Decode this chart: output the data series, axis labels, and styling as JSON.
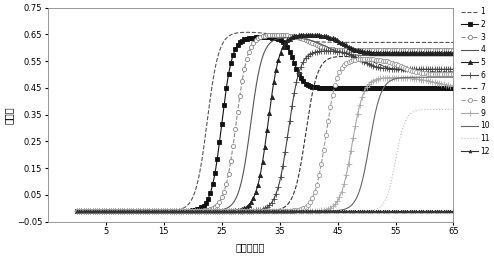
{
  "xlabel": "时间（分）",
  "ylabel": "浓度值",
  "xlim": [
    -5,
    65
  ],
  "ylim": [
    -0.05,
    0.75
  ],
  "xticks": [
    5,
    15,
    25,
    35,
    45,
    55,
    65
  ],
  "yticks": [
    -0.05,
    0.05,
    0.15,
    0.25,
    0.35,
    0.45,
    0.55,
    0.65,
    0.75
  ],
  "series": [
    {
      "label": "1",
      "rise_mid": 22.5,
      "rise_k": 1.0,
      "ymax": 0.67,
      "fall_mid": 36.0,
      "fall_k": 0.5,
      "yend": 0.63,
      "linestyle": "--",
      "color": "#555555",
      "marker": null,
      "markersize": 3,
      "markevery": 3
    },
    {
      "label": "2",
      "rise_mid": 25.0,
      "rise_k": 1.1,
      "ymax": 0.65,
      "fall_mid": 37.5,
      "fall_k": 1.2,
      "yend": 0.46,
      "linestyle": "-",
      "color": "#111111",
      "marker": "s",
      "markersize": 3,
      "markevery": 3
    },
    {
      "label": "3",
      "rise_mid": 27.5,
      "rise_k": 1.0,
      "ymax": 0.66,
      "fall_mid": 40.5,
      "fall_k": 0.7,
      "yend": 0.6,
      "linestyle": "--",
      "color": "#888888",
      "marker": "o",
      "markersize": 3,
      "markevery": 3
    },
    {
      "label": "4",
      "rise_mid": 30.0,
      "rise_k": 1.0,
      "ymax": 0.65,
      "fall_mid": 43.0,
      "fall_k": 0.6,
      "yend": 0.58,
      "linestyle": "-",
      "color": "#555555",
      "marker": null,
      "markersize": 3,
      "markevery": 3
    },
    {
      "label": "5",
      "rise_mid": 33.0,
      "rise_k": 1.0,
      "ymax": 0.66,
      "fall_mid": 46.0,
      "fall_k": 0.7,
      "yend": 0.59,
      "linestyle": "-",
      "color": "#222222",
      "marker": "^",
      "markersize": 3,
      "markevery": 3
    },
    {
      "label": "6",
      "rise_mid": 36.5,
      "rise_k": 1.0,
      "ymax": 0.6,
      "fall_mid": 49.0,
      "fall_k": 0.7,
      "yend": 0.53,
      "linestyle": "-",
      "color": "#444444",
      "marker": "+",
      "markersize": 4,
      "markevery": 3
    },
    {
      "label": "7",
      "rise_mid": 39.5,
      "rise_k": 1.0,
      "ymax": 0.58,
      "fall_mid": 52.0,
      "fall_k": 0.6,
      "yend": 0.52,
      "linestyle": "--",
      "color": "#333333",
      "marker": null,
      "markersize": 3,
      "markevery": 3
    },
    {
      "label": "8",
      "rise_mid": 43.0,
      "rise_k": 1.0,
      "ymax": 0.57,
      "fall_mid": 56.0,
      "fall_k": 0.6,
      "yend": 0.51,
      "linestyle": "--",
      "color": "#999999",
      "marker": "o",
      "markersize": 3,
      "markevery": 3
    },
    {
      "label": "9",
      "rise_mid": 47.5,
      "rise_k": 1.0,
      "ymax": 0.5,
      "fall_mid": 62.0,
      "fall_k": 0.5,
      "yend": 0.46,
      "linestyle": "-",
      "color": "#aaaaaa",
      "marker": "+",
      "markersize": 4,
      "markevery": 3
    },
    {
      "label": "10",
      "rise_mid": 50.5,
      "rise_k": 1.0,
      "ymax": 0.5,
      "fall_mid": 68.0,
      "fall_k": 0.5,
      "yend": 0.5,
      "linestyle": "-",
      "color": "#666666",
      "marker": null,
      "markersize": 3,
      "markevery": 3
    },
    {
      "label": "11",
      "rise_mid": 55.0,
      "rise_k": 1.2,
      "ymax": 0.38,
      "fall_mid": 80.0,
      "fall_k": 0.3,
      "yend": 0.38,
      "linestyle": ":",
      "color": "#bbbbbb",
      "marker": null,
      "markersize": 3,
      "markevery": 3
    },
    {
      "label": "12",
      "rise_mid": 100.0,
      "rise_k": 1.0,
      "ymax": 0.01,
      "fall_mid": 200.0,
      "fall_k": 0.3,
      "yend": 0.01,
      "linestyle": "-",
      "color": "#333333",
      "marker": "^",
      "markersize": 2,
      "markevery": 3
    }
  ],
  "baseline": -0.01,
  "npoints": 500
}
